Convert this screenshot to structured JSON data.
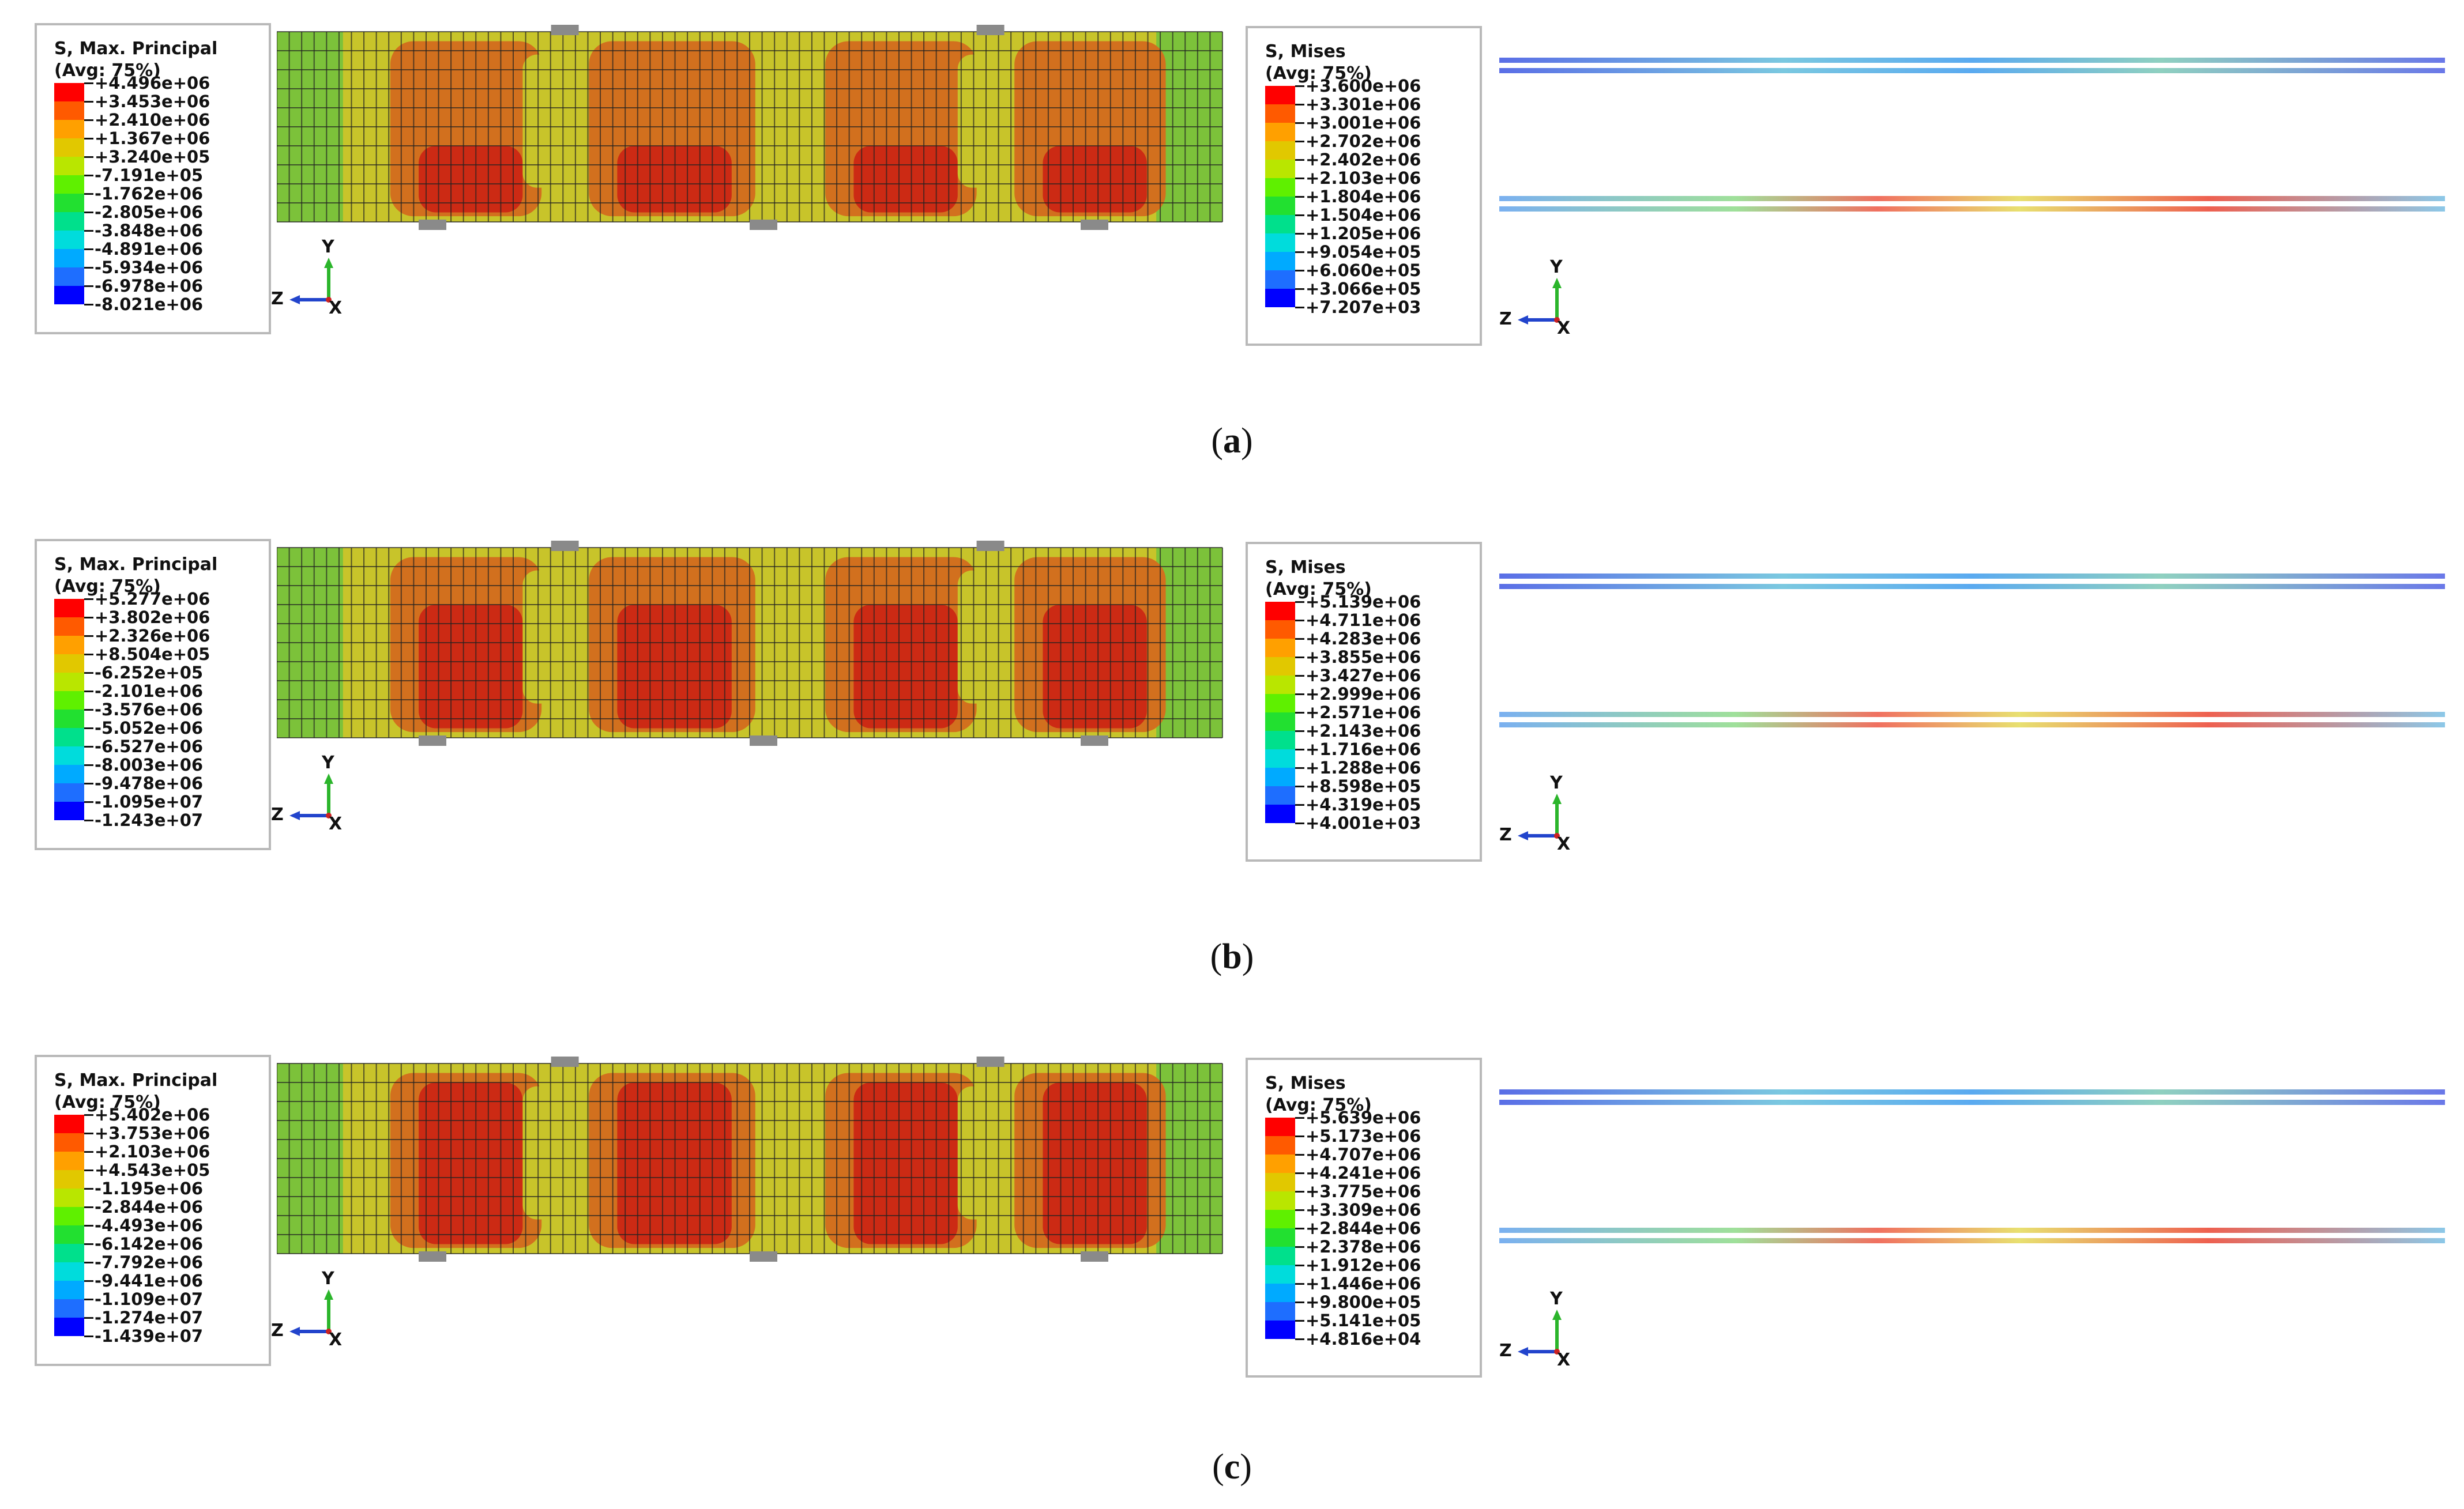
{
  "panels": [
    {
      "id": "a",
      "caption_open": "(",
      "caption_letter": "a",
      "caption_close": ")",
      "principal": {
        "title_line1": "S, Max. Principal",
        "title_line2": "(Avg: 75%)",
        "labels": [
          "+4.496e+06",
          "+3.453e+06",
          "+2.410e+06",
          "+1.367e+06",
          "+3.240e+05",
          "-7.191e+05",
          "-1.762e+06",
          "-2.805e+06",
          "-3.848e+06",
          "-4.891e+06",
          "-5.934e+06",
          "-6.978e+06",
          "-8.021e+06"
        ]
      },
      "mises": {
        "title_line1": "S, Mises",
        "title_line2": "(Avg: 75%)",
        "labels": [
          "+3.600e+06",
          "+3.301e+06",
          "+3.001e+06",
          "+2.702e+06",
          "+2.402e+06",
          "+2.103e+06",
          "+1.804e+06",
          "+1.504e+06",
          "+1.205e+06",
          "+9.054e+05",
          "+6.060e+05",
          "+3.066e+05",
          "+7.207e+03"
        ]
      },
      "triad_principal": {
        "y": "Y",
        "z": "Z",
        "x": "X"
      },
      "triad_mises": {
        "y": "Y",
        "z": "Z",
        "x": "X"
      }
    },
    {
      "id": "b",
      "caption_open": "(",
      "caption_letter": "b",
      "caption_close": ")",
      "principal": {
        "title_line1": "S, Max. Principal",
        "title_line2": "(Avg: 75%)",
        "labels": [
          "+5.277e+06",
          "+3.802e+06",
          "+2.326e+06",
          "+8.504e+05",
          "-6.252e+05",
          "-2.101e+06",
          "-3.576e+06",
          "-5.052e+06",
          "-6.527e+06",
          "-8.003e+06",
          "-9.478e+06",
          "-1.095e+07",
          "-1.243e+07"
        ]
      },
      "mises": {
        "title_line1": "S, Mises",
        "title_line2": "(Avg: 75%)",
        "labels": [
          "+5.139e+06",
          "+4.711e+06",
          "+4.283e+06",
          "+3.855e+06",
          "+3.427e+06",
          "+2.999e+06",
          "+2.571e+06",
          "+2.143e+06",
          "+1.716e+06",
          "+1.288e+06",
          "+8.598e+05",
          "+4.319e+05",
          "+4.001e+03"
        ]
      },
      "triad_principal": {
        "y": "Y",
        "z": "Z",
        "x": "X"
      },
      "triad_mises": {
        "y": "Y",
        "z": "Z",
        "x": "X"
      }
    },
    {
      "id": "c",
      "caption_open": "(",
      "caption_letter": "c",
      "caption_close": ")",
      "principal": {
        "title_line1": "S, Max. Principal",
        "title_line2": "(Avg: 75%)",
        "labels": [
          "+5.402e+06",
          "+3.753e+06",
          "+2.103e+06",
          "+4.543e+05",
          "-1.195e+06",
          "-2.844e+06",
          "-4.493e+06",
          "-6.142e+06",
          "-7.792e+06",
          "-9.441e+06",
          "-1.109e+07",
          "-1.274e+07",
          "-1.439e+07"
        ]
      },
      "mises": {
        "title_line1": "S, Mises",
        "title_line2": "(Avg: 75%)",
        "labels": [
          "+5.639e+06",
          "+5.173e+06",
          "+4.707e+06",
          "+4.241e+06",
          "+3.775e+06",
          "+3.309e+06",
          "+2.844e+06",
          "+2.378e+06",
          "+1.912e+06",
          "+1.446e+06",
          "+9.800e+05",
          "+5.141e+05",
          "+4.816e+04"
        ]
      },
      "triad_principal": {
        "y": "Y",
        "z": "Z",
        "x": "X"
      },
      "triad_mises": {
        "y": "Y",
        "z": "Z",
        "x": "X"
      }
    }
  ],
  "colors": {
    "scale": [
      "#ff0000",
      "#ff5a00",
      "#ffa000",
      "#e1c800",
      "#b9e600",
      "#5ff000",
      "#22e030",
      "#00e08c",
      "#00dcdc",
      "#00aaff",
      "#1e6eff",
      "#0000ff"
    ],
    "beam_green": "#7cc23a",
    "beam_yellow": "#c8c42a",
    "beam_orange": "#d2701e",
    "beam_red": "#cc2a14"
  },
  "layout": {
    "legend_rows": 12
  }
}
